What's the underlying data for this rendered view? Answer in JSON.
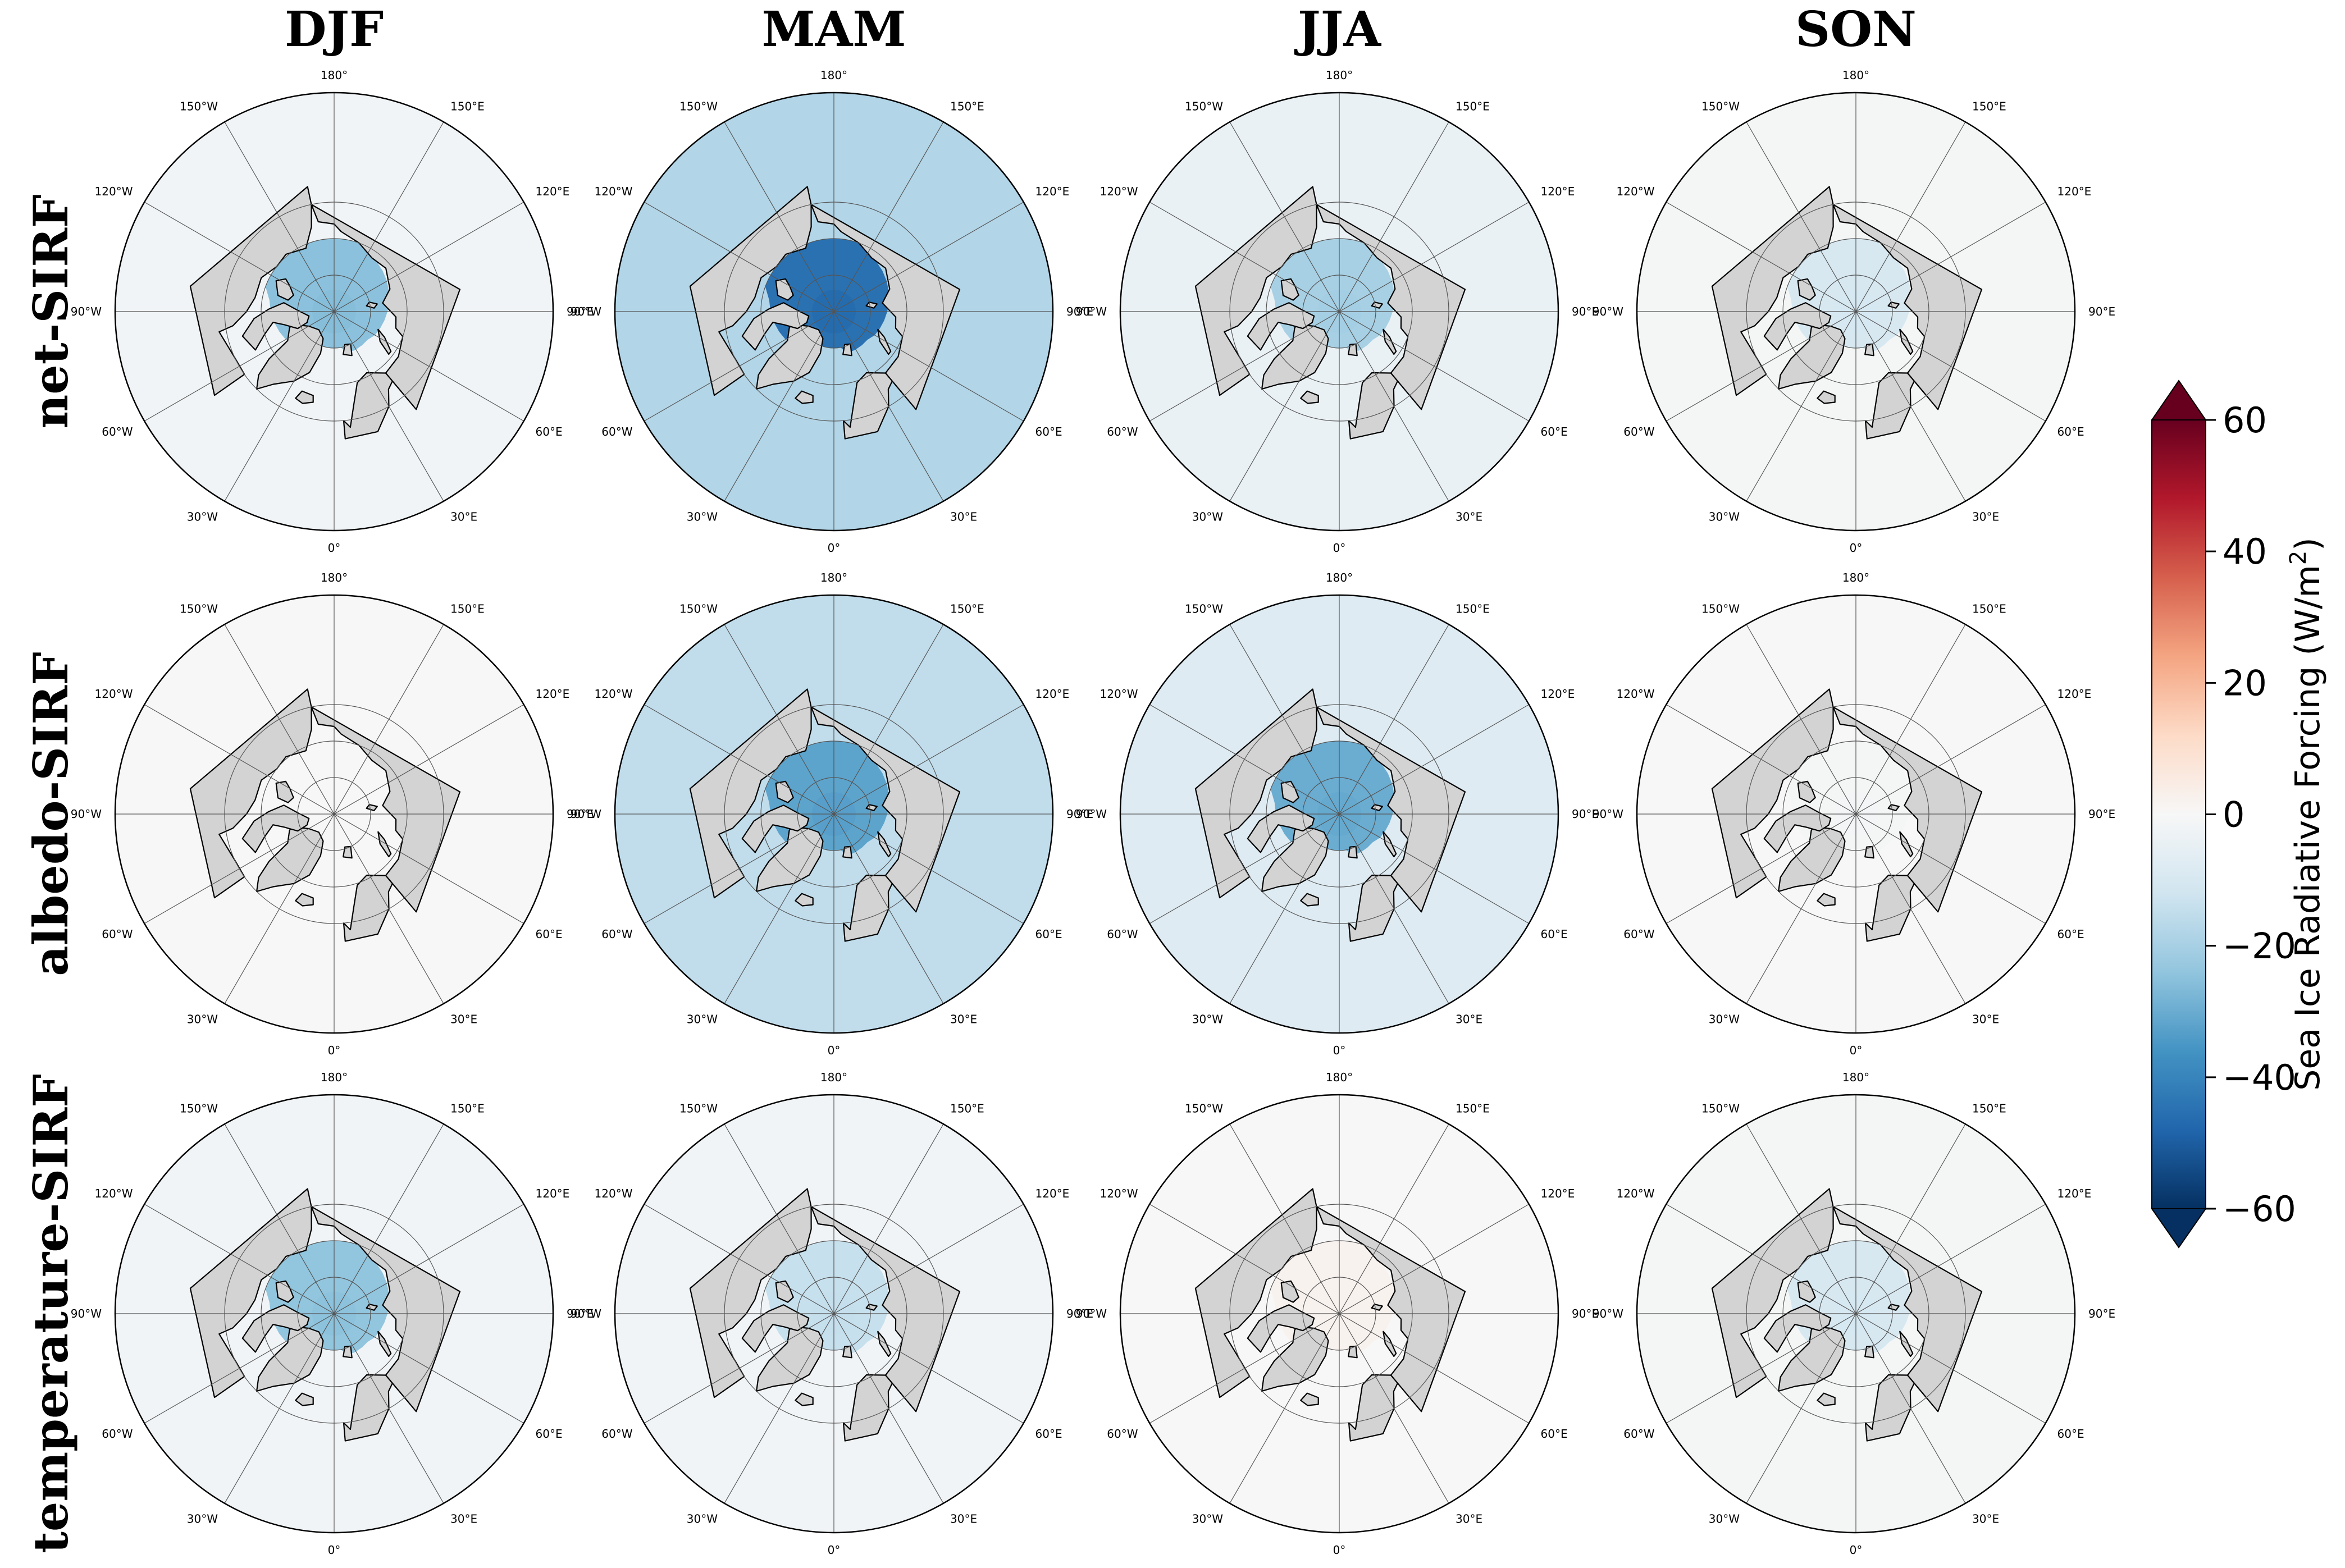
{
  "columns": [
    "DJF",
    "MAM",
    "JJA",
    "SON"
  ],
  "rows": [
    "net-SIRF",
    "albedo-SIRF",
    "temperature-SIRF"
  ],
  "lon_labels": [
    "90°W",
    "120°W",
    "150°W",
    "180°",
    "150°E",
    "120°E",
    "90°E",
    "60°E",
    "30°E",
    "0°",
    "30°W",
    "60°W"
  ],
  "colorbar": {
    "label_main": "Sea Ice Radiative Forcing (W/m",
    "label_sup": "2",
    "label_close": ")",
    "ticks": [
      "−60",
      "−40",
      "−20",
      "0",
      "20",
      "40",
      "60"
    ],
    "min": -60,
    "max": 60,
    "extend": "both",
    "colormap": [
      "#053061",
      "#2166ac",
      "#4393c3",
      "#92c5de",
      "#d1e5f0",
      "#f7f7f7",
      "#fddbc7",
      "#f4a582",
      "#d6604d",
      "#b2182b",
      "#67001f"
    ]
  },
  "colors": {
    "land": "#d3d3d3",
    "coast": "#000000",
    "grid": "#555555"
  },
  "panels": [
    [
      {
        "season": "DJF",
        "variable": "net-SIRF",
        "approx_mean_forcing": -25,
        "open_water_forcing": -2
      },
      {
        "season": "MAM",
        "variable": "net-SIRF",
        "approx_mean_forcing": -45,
        "open_water_forcing": -18
      },
      {
        "season": "JJA",
        "variable": "net-SIRF",
        "approx_mean_forcing": -20,
        "open_water_forcing": -4
      },
      {
        "season": "SON",
        "variable": "net-SIRF",
        "approx_mean_forcing": -10,
        "open_water_forcing": -1
      }
    ],
    [
      {
        "season": "DJF",
        "variable": "albedo-SIRF",
        "approx_mean_forcing": 0,
        "open_water_forcing": 0
      },
      {
        "season": "MAM",
        "variable": "albedo-SIRF",
        "approx_mean_forcing": -32,
        "open_water_forcing": -15
      },
      {
        "season": "JJA",
        "variable": "albedo-SIRF",
        "approx_mean_forcing": -30,
        "open_water_forcing": -8
      },
      {
        "season": "SON",
        "variable": "albedo-SIRF",
        "approx_mean_forcing": -1,
        "open_water_forcing": 0
      }
    ],
    [
      {
        "season": "DJF",
        "variable": "temperature-SIRF",
        "approx_mean_forcing": -24,
        "open_water_forcing": -2
      },
      {
        "season": "MAM",
        "variable": "temperature-SIRF",
        "approx_mean_forcing": -14,
        "open_water_forcing": -2
      },
      {
        "season": "JJA",
        "variable": "temperature-SIRF",
        "approx_mean_forcing": 2,
        "open_water_forcing": 0
      },
      {
        "season": "SON",
        "variable": "temperature-SIRF",
        "approx_mean_forcing": -10,
        "open_water_forcing": -1
      }
    ]
  ]
}
